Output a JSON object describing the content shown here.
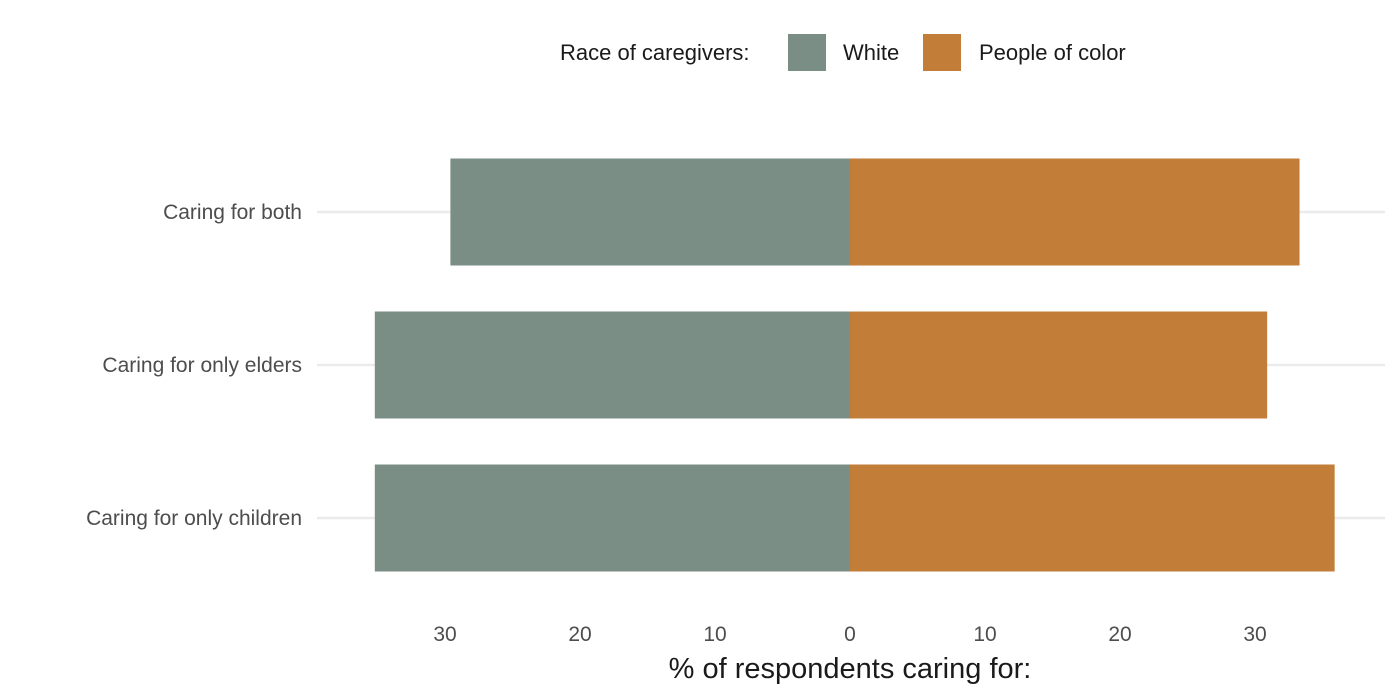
{
  "chart_data": {
    "type": "bar",
    "orientation": "horizontal-diverging",
    "categories": [
      "Caring for both",
      "Caring for only elders",
      "Caring for only children"
    ],
    "series": [
      {
        "name": "White",
        "values": [
          29.6,
          35.2,
          35.2
        ],
        "color": "#7a8e86",
        "direction": "left"
      },
      {
        "name": "People of color",
        "values": [
          33.3,
          30.9,
          35.9
        ],
        "color": "#c27e38",
        "direction": "right"
      }
    ],
    "legend_title": "Race of caregivers:",
    "legend_position": "top",
    "xlabel": "% of respondents caring for:",
    "ylabel": "",
    "xticks": [
      -30,
      -20,
      -10,
      0,
      10,
      20,
      30
    ],
    "xtick_labels": [
      "30",
      "20",
      "10",
      "0",
      "10",
      "20",
      "30"
    ],
    "xlim": [
      -36.2,
      39.4
    ],
    "grid": "horizontal major only"
  }
}
